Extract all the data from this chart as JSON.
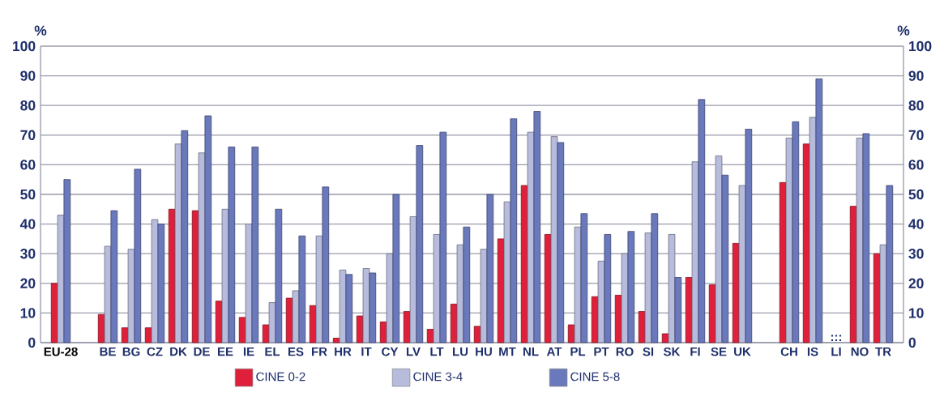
{
  "chart_data": {
    "type": "bar",
    "ylabel": "%",
    "y2label": "%",
    "categories": [
      "EU-28",
      null,
      "BE",
      "BG",
      "CZ",
      "DK",
      "DE",
      "EE",
      "IE",
      "EL",
      "ES",
      "FR",
      "HR",
      "IT",
      "CY",
      "LV",
      "LT",
      "LU",
      "HU",
      "MT",
      "NL",
      "AT",
      "PL",
      "PT",
      "RO",
      "SI",
      "SK",
      "FI",
      "SE",
      "UK",
      null,
      "CH",
      "IS",
      "LI",
      "NO",
      "TR"
    ],
    "series": [
      {
        "name": "CINE 0-2",
        "color": "#e0203a",
        "values": [
          20,
          null,
          9.5,
          5,
          5,
          45,
          44.5,
          14,
          8.5,
          6,
          15,
          12.5,
          1.5,
          9,
          7,
          10.5,
          4.5,
          13,
          5.5,
          35,
          53,
          36.5,
          6,
          15.5,
          16,
          10.5,
          3,
          22,
          19.5,
          33.5,
          null,
          54,
          67,
          null,
          46,
          30
        ]
      },
      {
        "name": "CINE 3-4",
        "color": "#b8bcdc",
        "values": [
          43,
          null,
          32.5,
          31.5,
          41.5,
          67,
          64,
          45,
          40,
          13.5,
          17.5,
          36,
          24.5,
          25,
          30,
          42.5,
          36.5,
          33,
          31.5,
          47.5,
          71,
          69.5,
          39,
          27.5,
          30,
          37,
          36.5,
          61,
          63,
          53,
          null,
          69,
          76,
          null,
          69,
          33
        ]
      },
      {
        "name": "CINE 5-8",
        "color": "#6a78bc",
        "values": [
          55,
          null,
          44.5,
          58.5,
          40,
          71.5,
          76.5,
          66,
          66,
          45,
          36,
          52.5,
          23,
          23.5,
          50,
          66.5,
          71,
          39,
          50,
          75.5,
          78,
          67.5,
          43.5,
          36.5,
          37.5,
          43.5,
          22,
          82,
          56.5,
          72,
          null,
          74.5,
          89,
          null,
          70.5,
          53
        ]
      }
    ],
    "annotations": [
      ":::"
    ],
    "ylim": [
      0,
      100
    ],
    "yticks": [
      0,
      10,
      20,
      30,
      40,
      50,
      60,
      70,
      80,
      90,
      100
    ],
    "y2lim": [
      0,
      100
    ],
    "y2ticks": [
      0,
      10,
      20,
      30,
      40,
      50,
      60,
      70,
      80,
      90,
      100
    ],
    "grid": "y",
    "legend": "bottom"
  }
}
